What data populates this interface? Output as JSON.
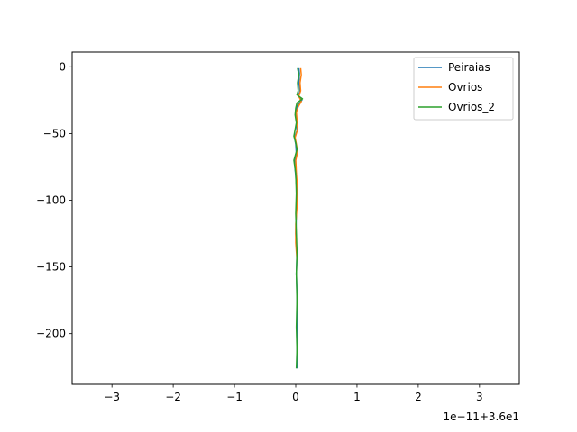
{
  "chart_data": {
    "type": "line",
    "title": "",
    "xlabel": "",
    "ylabel": "",
    "x_offset_label": "1e−11+3.6e1",
    "xlim": [
      -3.65,
      3.65
    ],
    "ylim": [
      -238,
      11
    ],
    "x_ticks": [
      -3,
      -2,
      -1,
      0,
      1,
      2,
      3
    ],
    "x_tick_labels": [
      "−3",
      "−2",
      "−1",
      "0",
      "1",
      "2",
      "3"
    ],
    "y_ticks": [
      0,
      -50,
      -100,
      -150,
      -200
    ],
    "y_tick_labels": [
      "0",
      "−50",
      "−100",
      "−150",
      "−200"
    ],
    "grid": false,
    "legend_position": "top-right",
    "series": [
      {
        "name": "Peiraias",
        "color": "#1f77b4",
        "points": [
          [
            0.05,
            -1
          ],
          [
            0.06,
            -5
          ],
          [
            0.05,
            -12
          ],
          [
            0.07,
            -18
          ],
          [
            0.04,
            -22
          ],
          [
            0.1,
            -25
          ],
          [
            0.03,
            -29
          ],
          [
            0.0,
            -33
          ],
          [
            0.01,
            -40
          ],
          [
            0.02,
            -48
          ],
          [
            -0.02,
            -53
          ],
          [
            0.0,
            -58
          ],
          [
            0.01,
            -65
          ],
          [
            -0.02,
            -72
          ],
          [
            0.0,
            -82
          ],
          [
            0.02,
            -95
          ],
          [
            0.01,
            -110
          ],
          [
            0.0,
            -125
          ],
          [
            0.02,
            -140
          ],
          [
            0.01,
            -155
          ],
          [
            0.02,
            -170
          ],
          [
            0.02,
            -190
          ],
          [
            0.02,
            -210
          ],
          [
            0.02,
            -226
          ]
        ]
      },
      {
        "name": "Ovrios",
        "color": "#ff7f0e",
        "points": [
          [
            0.08,
            -1
          ],
          [
            0.09,
            -6
          ],
          [
            0.07,
            -12
          ],
          [
            0.08,
            -18
          ],
          [
            0.05,
            -22
          ],
          [
            0.09,
            -26
          ],
          [
            0.04,
            -30
          ],
          [
            0.01,
            -34
          ],
          [
            0.02,
            -40
          ],
          [
            0.03,
            -47
          ],
          [
            -0.01,
            -53
          ],
          [
            0.01,
            -58
          ],
          [
            0.03,
            -64
          ],
          [
            0.0,
            -70
          ],
          [
            0.01,
            -80
          ],
          [
            0.03,
            -92
          ],
          [
            0.02,
            -105
          ],
          [
            0.0,
            -118
          ],
          [
            0.0,
            -132
          ],
          [
            0.02,
            -145
          ]
        ]
      },
      {
        "name": "Ovrios_2",
        "color": "#2ca02c",
        "points": [
          [
            0.03,
            -1
          ],
          [
            0.05,
            -6
          ],
          [
            0.03,
            -12
          ],
          [
            0.04,
            -18
          ],
          [
            0.02,
            -21
          ],
          [
            0.11,
            -24
          ],
          [
            0.02,
            -27
          ],
          [
            0.0,
            -31
          ],
          [
            -0.01,
            -36
          ],
          [
            0.01,
            -42
          ],
          [
            -0.03,
            -52
          ],
          [
            0.0,
            -57
          ],
          [
            0.02,
            -62
          ],
          [
            -0.03,
            -70
          ],
          [
            0.0,
            -80
          ],
          [
            0.01,
            -95
          ],
          [
            0.0,
            -110
          ],
          [
            0.01,
            -125
          ],
          [
            0.02,
            -140
          ],
          [
            0.01,
            -155
          ],
          [
            0.02,
            -175
          ],
          [
            0.01,
            -195
          ],
          [
            0.02,
            -212
          ],
          [
            0.01,
            -226
          ]
        ]
      }
    ]
  }
}
